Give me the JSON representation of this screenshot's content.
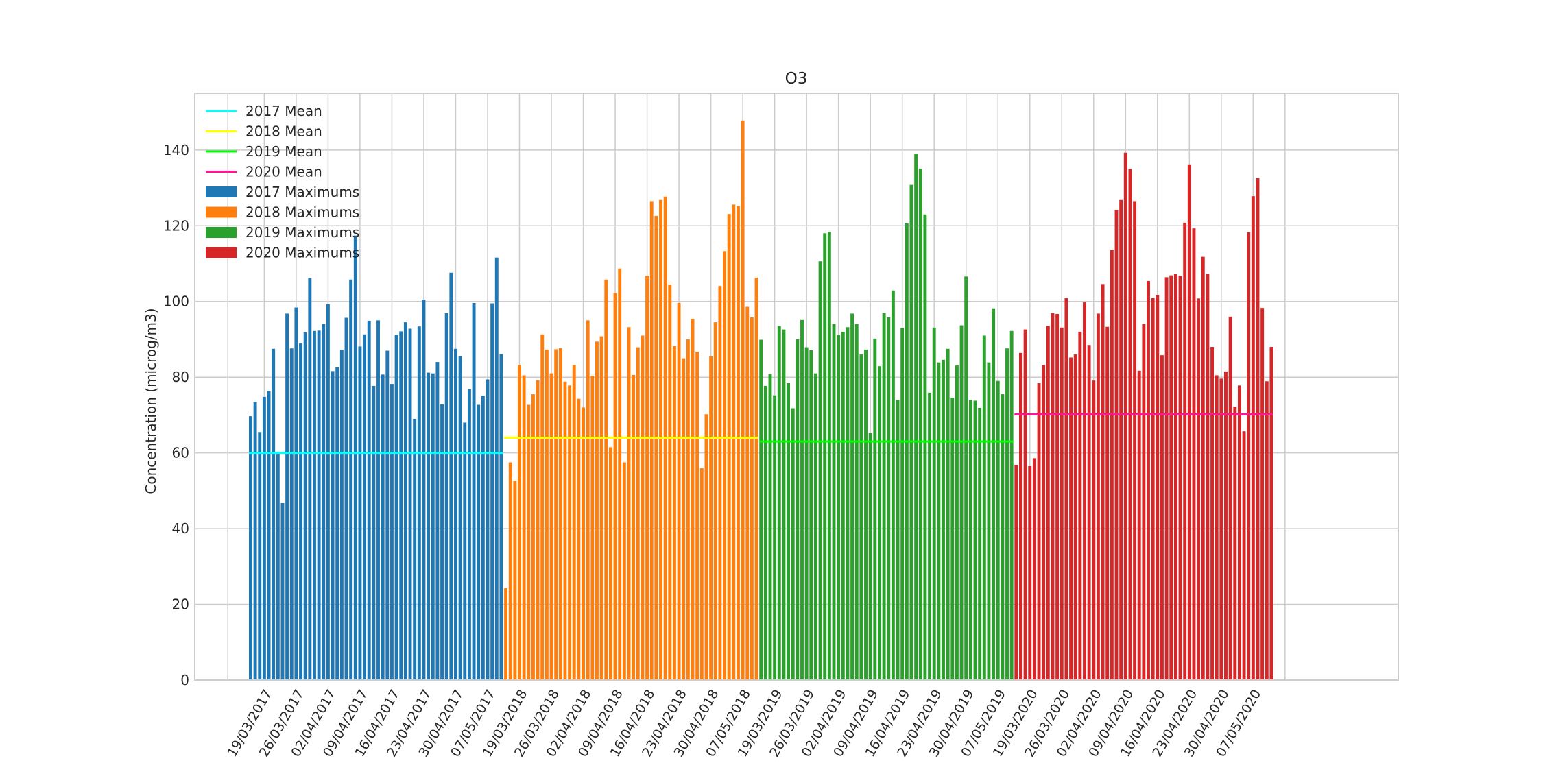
{
  "chart_data": {
    "type": "bar",
    "title": "O3",
    "xlabel": "",
    "ylabel": "Concentration (microg/m3)",
    "ylim": [
      0,
      155
    ],
    "yticks": [
      0,
      20,
      40,
      60,
      80,
      100,
      120,
      140
    ],
    "grid": true,
    "legend_position": "top-left",
    "xtick_labels": [
      "19/03/2017",
      "26/03/2017",
      "02/04/2017",
      "09/04/2017",
      "16/04/2017",
      "23/04/2017",
      "30/04/2017",
      "07/05/2017",
      "19/03/2018",
      "26/03/2018",
      "02/04/2018",
      "09/04/2018",
      "16/04/2018",
      "23/04/2018",
      "30/04/2018",
      "07/05/2018",
      "19/03/2019",
      "26/03/2019",
      "02/04/2019",
      "09/04/2019",
      "16/04/2019",
      "23/04/2019",
      "30/04/2019",
      "07/05/2019",
      "19/03/2020",
      "26/03/2020",
      "02/04/2020",
      "09/04/2020",
      "16/04/2020",
      "23/04/2020",
      "30/04/2020",
      "07/05/2020"
    ],
    "series": [
      {
        "name": "2017 Maximums",
        "color": "#1f77b4",
        "start_date": "2017-03-16",
        "values": [
          69.7,
          73.5,
          65.5,
          74.8,
          76.3,
          87.5,
          59.9,
          46.8,
          96.8,
          87.6,
          98.4,
          88.9,
          91.8,
          106.2,
          92.2,
          92.3,
          94.0,
          99.3,
          81.6,
          82.6,
          87.2,
          95.7,
          105.8,
          117.4,
          88.1,
          91.3,
          94.9,
          77.7,
          95.0,
          80.7,
          87.0,
          78.2,
          91.1,
          92.1,
          94.5,
          92.8,
          69.0,
          93.4,
          100.5,
          81.2,
          81.0,
          84.0,
          72.8,
          96.9,
          107.6,
          87.5,
          85.5,
          68.0,
          76.8,
          99.6,
          72.7,
          75.1,
          79.4,
          99.5,
          111.6,
          86.1
        ]
      },
      {
        "name": "2018 Maximums",
        "color": "#ff7f0e",
        "start_date": "2018-03-16",
        "values": [
          24.3,
          57.5,
          52.6,
          83.2,
          80.5,
          72.7,
          75.5,
          79.2,
          91.3,
          87.3,
          81.0,
          87.4,
          87.7,
          78.8,
          77.8,
          83.2,
          74.3,
          72.0,
          95.0,
          80.4,
          89.4,
          90.8,
          105.8,
          61.5,
          102.2,
          108.7,
          57.5,
          93.2,
          80.6,
          87.9,
          91.0,
          106.8,
          126.5,
          122.6,
          126.8,
          127.7,
          104.5,
          88.2,
          99.6,
          85.0,
          90.0,
          95.4,
          86.7,
          56.0,
          70.2,
          85.5,
          94.5,
          104.1,
          113.3,
          123.1,
          125.6,
          125.2,
          147.8,
          98.6,
          95.8,
          106.3
        ]
      },
      {
        "name": "2019 Maximums",
        "color": "#2ca02c",
        "start_date": "2019-03-16",
        "values": [
          89.9,
          77.7,
          80.8,
          75.2,
          93.5,
          92.6,
          78.4,
          71.8,
          90.0,
          95.1,
          87.9,
          87.1,
          81.0,
          110.6,
          118.0,
          118.4,
          94.0,
          91.2,
          92.0,
          93.2,
          96.8,
          94.0,
          86.0,
          87.3,
          65.2,
          90.2,
          82.9,
          96.9,
          95.8,
          102.9,
          74.0,
          93.0,
          120.6,
          130.8,
          139.0,
          135.1,
          123.0,
          75.9,
          93.1,
          83.9,
          84.6,
          87.5,
          74.6,
          83.1,
          93.7,
          106.6,
          74.0,
          73.8,
          71.9,
          91.0,
          83.9,
          98.2,
          79.0,
          75.5,
          87.6,
          92.2
        ]
      },
      {
        "name": "2020 Maximums",
        "color": "#d62728",
        "start_date": "2020-03-16",
        "values": [
          56.8,
          86.4,
          92.6,
          56.5,
          58.6,
          78.4,
          83.2,
          93.6,
          96.9,
          96.7,
          93.1,
          100.9,
          85.2,
          86.0,
          92.0,
          99.8,
          88.5,
          79.1,
          96.8,
          104.6,
          93.3,
          113.6,
          124.2,
          126.8,
          139.3,
          135.0,
          126.5,
          81.7,
          94.0,
          105.4,
          100.9,
          101.7,
          85.8,
          106.4,
          106.9,
          107.2,
          106.8,
          120.8,
          136.2,
          119.3,
          100.8,
          111.8,
          107.3,
          88.0,
          80.5,
          79.6,
          81.5,
          96.0,
          72.2,
          77.8,
          65.7,
          118.3,
          127.8,
          132.6,
          98.3,
          78.9,
          88.0
        ]
      }
    ],
    "means": [
      {
        "name": "2017 Mean",
        "color": "#00ffff",
        "value": 60.0
      },
      {
        "name": "2018 Mean",
        "color": "#ffff00",
        "value": 64.0
      },
      {
        "name": "2019 Mean",
        "color": "#00ff00",
        "value": 63.0
      },
      {
        "name": "2020 Mean",
        "color": "#ff1493",
        "value": 70.2
      }
    ]
  }
}
